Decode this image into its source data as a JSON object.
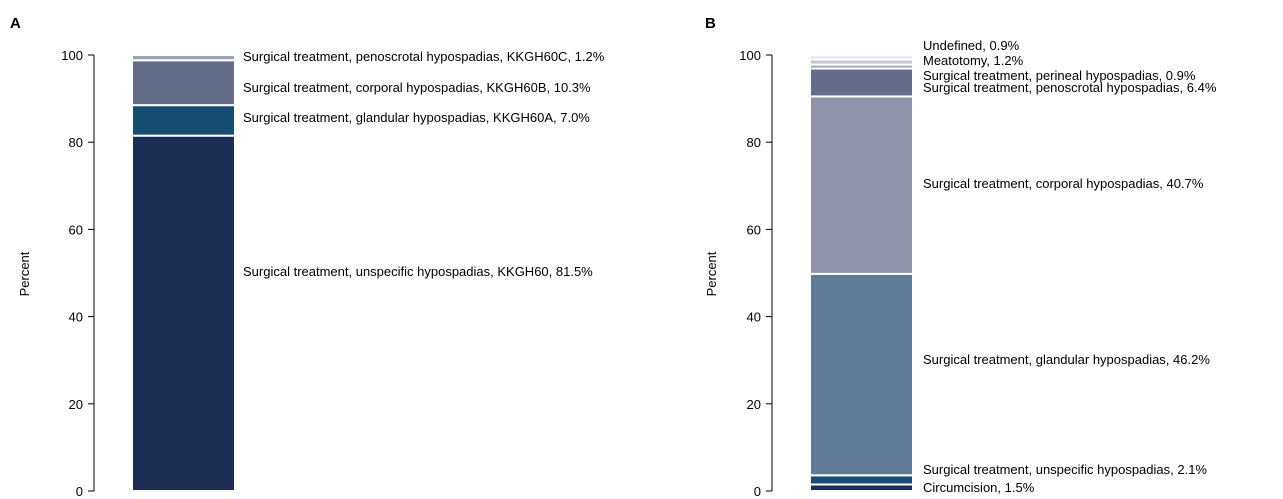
{
  "chart_data": [
    {
      "panel_label": "A",
      "type": "bar",
      "stacked": true,
      "ylabel": "Percent",
      "ylim": [
        0,
        100
      ],
      "yticks": [
        "0",
        "20",
        "40",
        "60",
        "80",
        "100"
      ],
      "segments": [
        {
          "label": "Surgical treatment, unspecific hypospadias, KKGH60, 81.5%",
          "value": 81.5,
          "color": "#1c2c52"
        },
        {
          "label": "Surgical treatment, glandular hypospadias, KKGH60A, 7.0%",
          "value": 7.0,
          "color": "#184d72"
        },
        {
          "label": "Surgical treatment, corporal hypospadias, KKGH60B, 10.3%",
          "value": 10.3,
          "color": "#646e8a"
        },
        {
          "label": "Surgical treatment, penoscrotal hypospadias, KKGH60C, 1.2%",
          "value": 1.2,
          "color": "#9ba3bc"
        }
      ]
    },
    {
      "panel_label": "B",
      "type": "bar",
      "stacked": true,
      "ylabel": "Percent",
      "ylim": [
        0,
        100
      ],
      "yticks": [
        "0",
        "20",
        "40",
        "60",
        "80",
        "100"
      ],
      "segments": [
        {
          "label": "Circumcision, 1.5%",
          "value": 1.5,
          "color": "#1c2c52"
        },
        {
          "label": "Surgical treatment, unspecific hypospadias, 2.1%",
          "value": 2.1,
          "color": "#184d72"
        },
        {
          "label": "Surgical treatment, glandular hypospadias, 46.2%",
          "value": 46.2,
          "color": "#5f7b98"
        },
        {
          "label": "Surgical treatment, corporal hypospadias, 40.7%",
          "value": 40.7,
          "color": "#8e93a7"
        },
        {
          "label": "Surgical treatment, penoscrotal hypospadias, 6.4%",
          "value": 6.4,
          "color": "#646e8a"
        },
        {
          "label": "Surgical treatment, perineal hypospadias, 0.9%",
          "value": 0.9,
          "color": "#9ba3bc"
        },
        {
          "label": "Meatotomy, 1.2%",
          "value": 1.2,
          "color": "#c3c8d6"
        },
        {
          "label": "Undefined, 0.9%",
          "value": 0.9,
          "color": "#e1e4ec"
        }
      ]
    }
  ]
}
